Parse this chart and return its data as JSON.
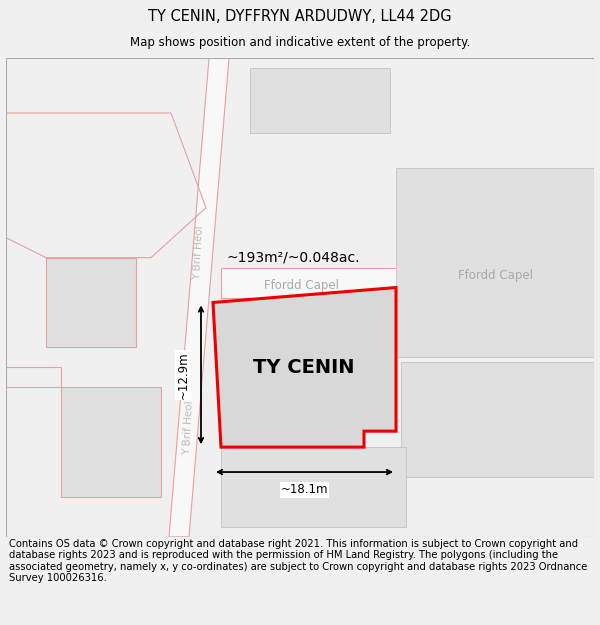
{
  "title": "TY CENIN, DYFFRYN ARDUDWY, LL44 2DG",
  "subtitle": "Map shows position and indicative extent of the property.",
  "footer": "Contains OS data © Crown copyright and database right 2021. This information is subject to Crown copyright and database rights 2023 and is reproduced with the permission of\nHM Land Registry. The polygons (including the associated geometry, namely x, y co-ordinates) are subject to Crown copyright and database rights 2023 Ordnance Survey\n100026316.",
  "property_label": "TY CENIN",
  "area_label": "~193m²/~0.048ac.",
  "road_ffordd_capel_left": "Ffordd Capel",
  "road_ffordd_capel_right": "Ffordd Capel",
  "road_y_brif_heol_upper": "Y Brif Heol",
  "road_y_brif_heol_lower": "Y Brif Heol",
  "dim_width": "~18.1m",
  "dim_height": "~12.9m",
  "bg_color": "#f0f0f0",
  "map_bg": "#ffffff",
  "plot_fill": "#d8d8d8",
  "plot_stroke": "#ee0000",
  "neighbor_fill": "#e0e0e0",
  "neighbor_stroke": "#c8c8c8",
  "parcel_outline_color": "#e8a0a0",
  "road_label_color": "#aaaaaa",
  "title_fontsize": 10.5,
  "subtitle_fontsize": 8.5,
  "footer_fontsize": 7.2,
  "property_label_fontsize": 14,
  "area_label_fontsize": 10,
  "road_label_fontsize": 8.5,
  "dim_fontsize": 8.5
}
